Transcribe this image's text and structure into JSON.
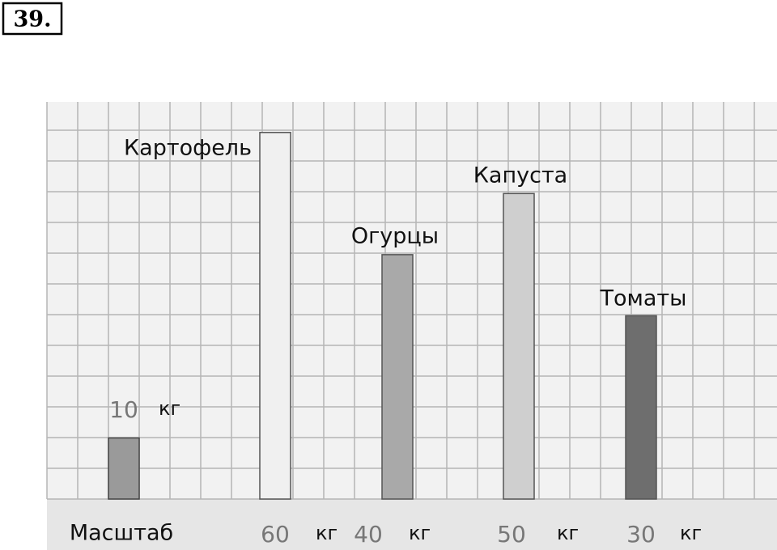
{
  "task_number": "39.",
  "chart_data": {
    "type": "bar",
    "categories": [
      "Картофель",
      "Огурцы",
      "Капуста",
      "Томаты"
    ],
    "values": [
      60,
      40,
      50,
      30
    ],
    "colors": [
      "#f0f0f0",
      "#a9a9a9",
      "#cfcfcf",
      "#6e6e6e"
    ],
    "unit": "кг",
    "scale": {
      "label": "Масштаб",
      "value": 10,
      "color": "#9a9a9a"
    },
    "ylim": [
      0,
      65
    ],
    "grid": true
  }
}
